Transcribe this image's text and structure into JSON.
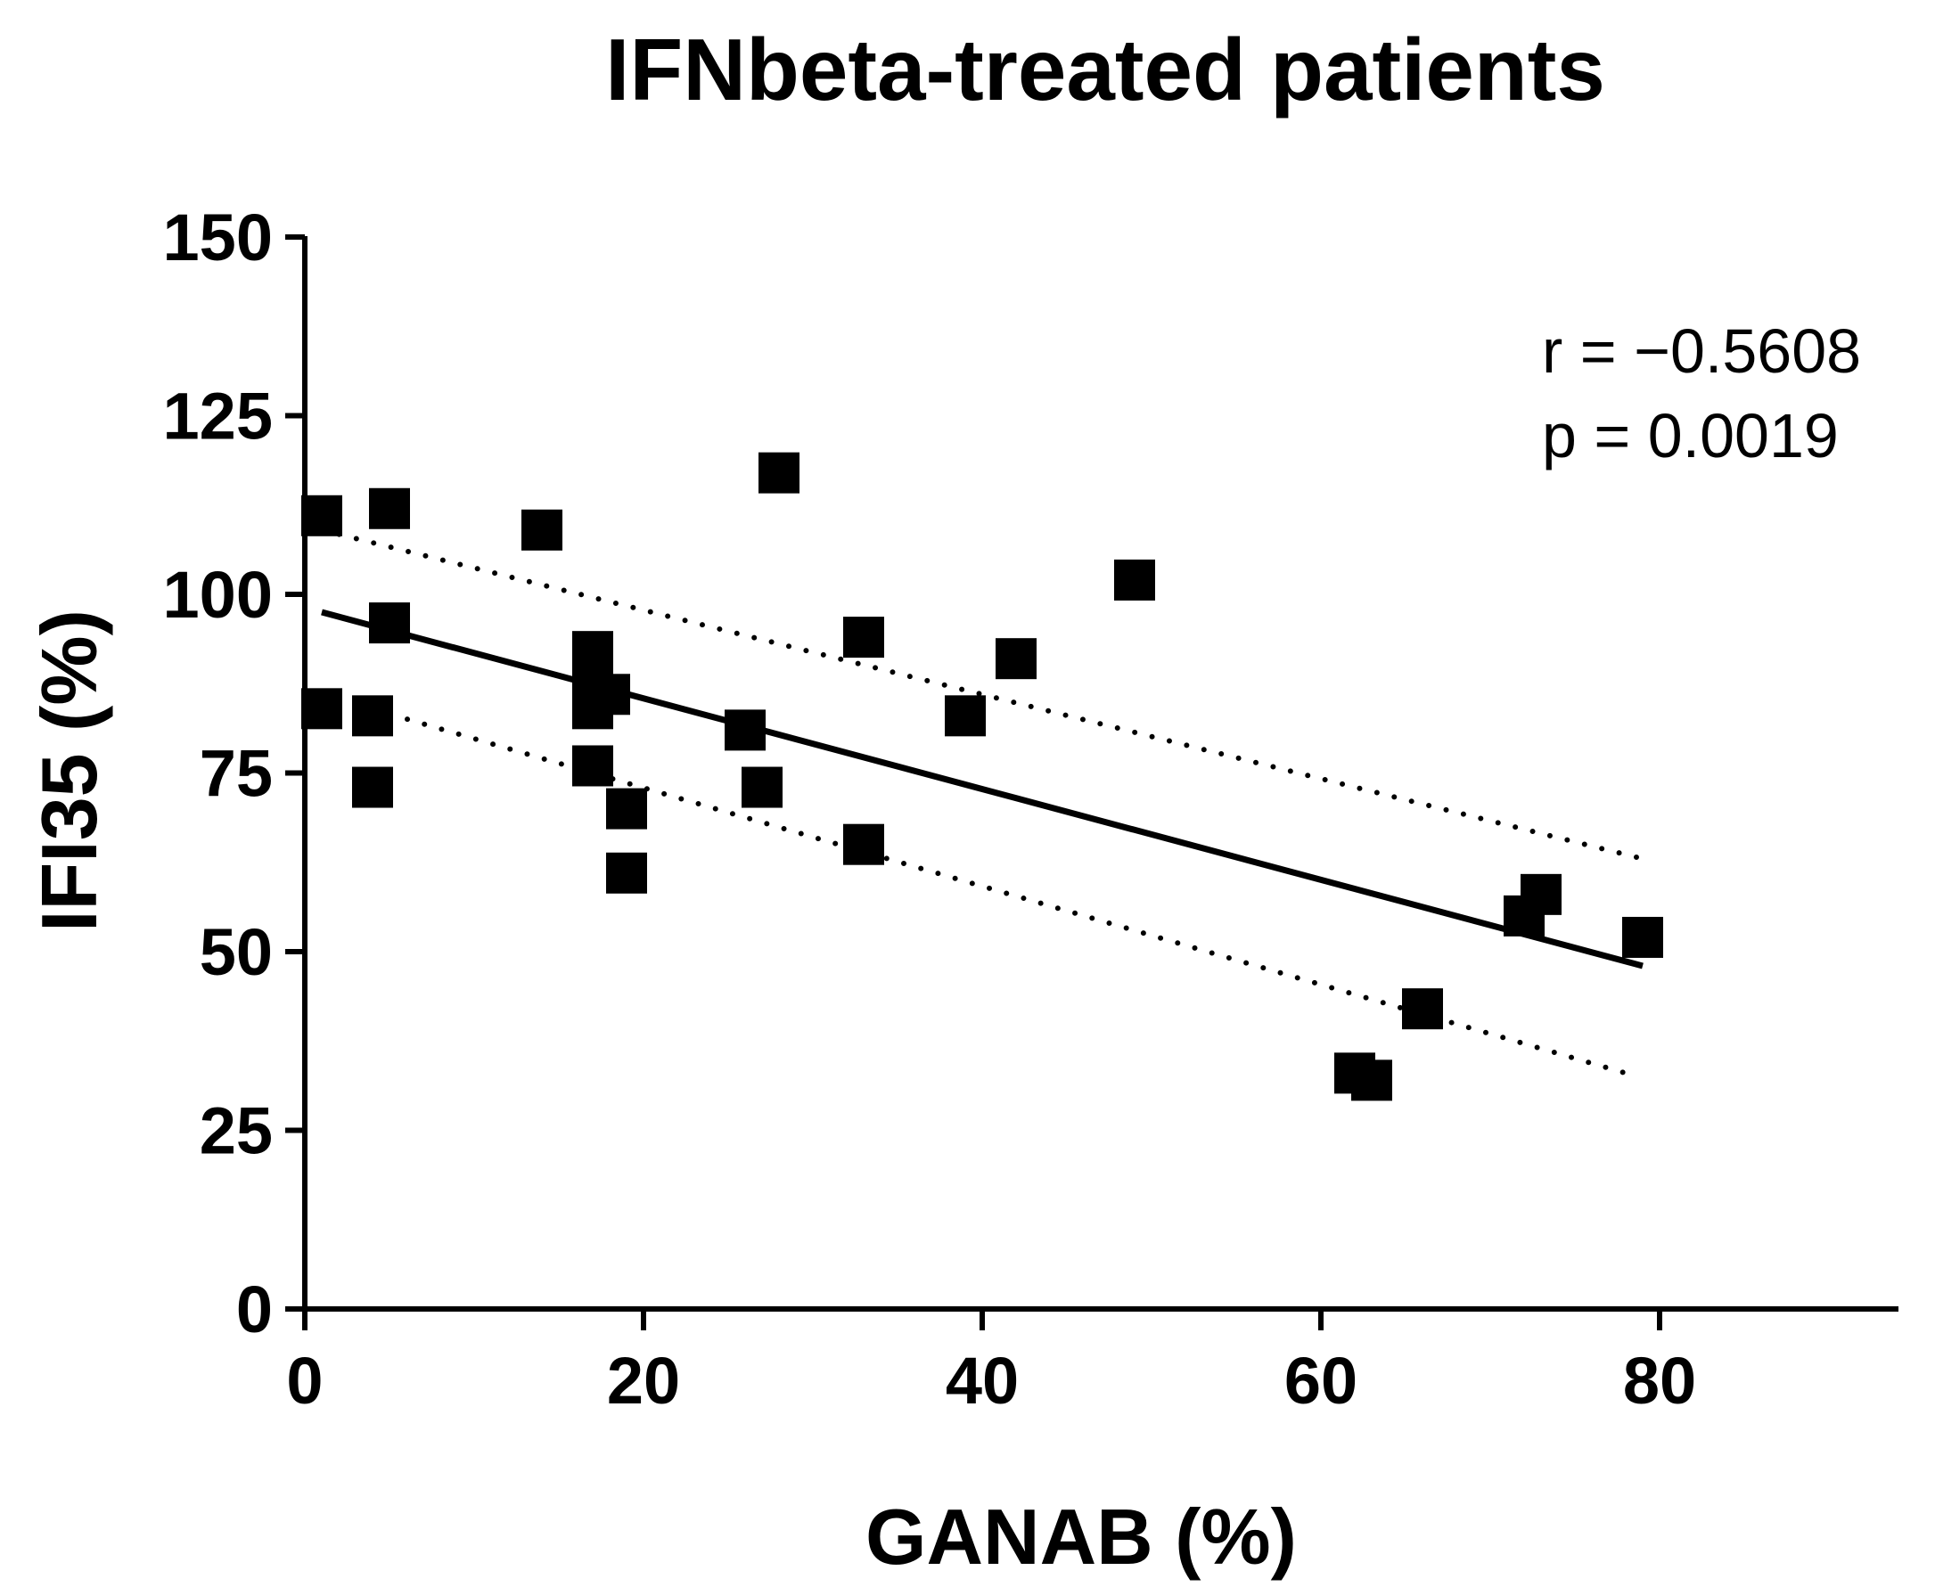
{
  "chart_data": {
    "type": "scatter",
    "title": "IFNbeta-treated patients",
    "xlabel": "GANAB (%)",
    "ylabel": "IFI35 (%)",
    "xlim": [
      0,
      95
    ],
    "ylim": [
      0,
      150
    ],
    "xticks": [
      0,
      20,
      40,
      60,
      80
    ],
    "yticks": [
      0,
      25,
      50,
      75,
      100,
      125,
      150
    ],
    "grid": false,
    "legend": "none",
    "annotations": [
      "r = −0.5608",
      "p = 0.0019"
    ],
    "marker": "square",
    "color": "#000000",
    "series": [
      {
        "points": [
          {
            "x": 1,
            "y": 111
          },
          {
            "x": 5,
            "y": 112
          },
          {
            "x": 14,
            "y": 109
          },
          {
            "x": 28,
            "y": 117
          },
          {
            "x": 49,
            "y": 102
          },
          {
            "x": 5,
            "y": 96
          },
          {
            "x": 33,
            "y": 94
          },
          {
            "x": 17,
            "y": 92
          },
          {
            "x": 42,
            "y": 91
          },
          {
            "x": 17,
            "y": 88
          },
          {
            "x": 18,
            "y": 86
          },
          {
            "x": 1,
            "y": 84
          },
          {
            "x": 17,
            "y": 84
          },
          {
            "x": 4,
            "y": 83
          },
          {
            "x": 39,
            "y": 83
          },
          {
            "x": 26,
            "y": 81
          },
          {
            "x": 17,
            "y": 76
          },
          {
            "x": 4,
            "y": 73
          },
          {
            "x": 27,
            "y": 73
          },
          {
            "x": 19,
            "y": 70
          },
          {
            "x": 33,
            "y": 65
          },
          {
            "x": 19,
            "y": 61
          },
          {
            "x": 73,
            "y": 58
          },
          {
            "x": 72,
            "y": 55
          },
          {
            "x": 79,
            "y": 52
          },
          {
            "x": 66,
            "y": 42
          },
          {
            "x": 62,
            "y": 33
          },
          {
            "x": 63,
            "y": 32
          }
        ]
      }
    ],
    "regression": {
      "x": [
        1,
        79
      ],
      "y": [
        97.5,
        48
      ],
      "style": "solid"
    },
    "confidence_band": {
      "upper": {
        "x": [
          1,
          79
        ],
        "y": [
          109,
          63
        ]
      },
      "lower": {
        "x": [
          1,
          78
        ],
        "y": [
          86,
          33
        ]
      },
      "style": "dotted"
    }
  }
}
